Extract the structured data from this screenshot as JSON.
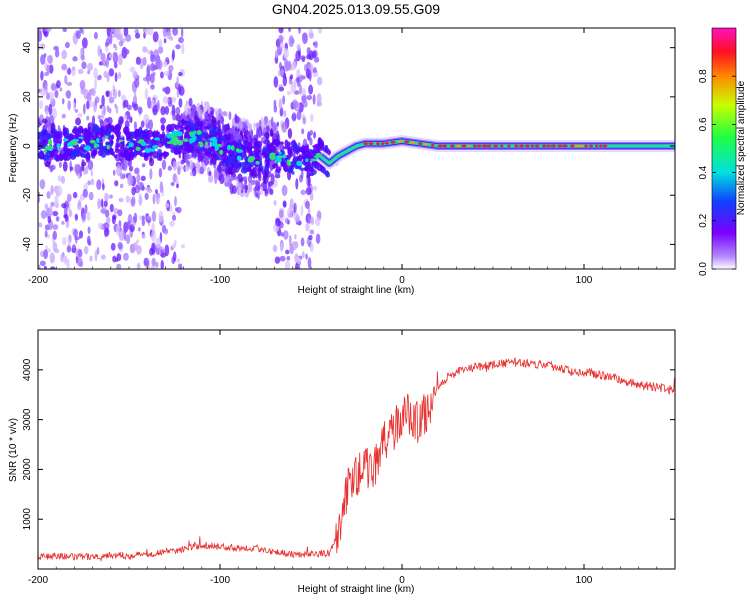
{
  "title": "GN04.2025.013.09.55.G09",
  "colors": {
    "spectrogram_line": "#28d9a6",
    "spectrogram_peak": "#e8213f",
    "scatter": "#6a00ff",
    "snr_line": "#e8302f"
  },
  "chart_data": [
    {
      "type": "heatmap",
      "xlabel": "Height of straight line (km)",
      "ylabel": "Frequency (Hz)",
      "xlim": [
        -200,
        150
      ],
      "ylim": [
        -50,
        48
      ],
      "x_ticks": [
        -200,
        -100,
        0,
        100
      ],
      "y_ticks": [
        -40,
        -20,
        0,
        20,
        40
      ],
      "grid": false,
      "colorbar": {
        "label": "Normalized spectral amplitude",
        "range": [
          0.0,
          1.0
        ],
        "ticks": [
          "0.0",
          "0.2",
          "0.4",
          "0.6",
          "0.8"
        ],
        "colormap": "hsv"
      },
      "dominant_frequency": [
        [
          -200,
          0
        ],
        [
          -180,
          1
        ],
        [
          -160,
          2
        ],
        [
          -140,
          0
        ],
        [
          -120,
          4
        ],
        [
          -110,
          3
        ],
        [
          -100,
          0
        ],
        [
          -90,
          -4
        ],
        [
          -80,
          -5
        ],
        [
          -70,
          -4
        ],
        [
          -60,
          -5
        ],
        [
          -50,
          -6
        ],
        [
          -45,
          -4
        ],
        [
          -40,
          -7
        ],
        [
          -35,
          -4
        ],
        [
          -30,
          -2
        ],
        [
          -25,
          0
        ],
        [
          -20,
          1
        ],
        [
          -10,
          1
        ],
        [
          0,
          2
        ],
        [
          10,
          1
        ],
        [
          20,
          0
        ],
        [
          50,
          0
        ],
        [
          100,
          0
        ],
        [
          150,
          0
        ]
      ]
    },
    {
      "type": "line",
      "xlabel": "Height of straight line (km)",
      "ylabel": "SNR (10 * v/v)",
      "xlim": [
        -200,
        150
      ],
      "ylim": [
        0,
        4800
      ],
      "x_ticks": [
        -200,
        -100,
        0,
        100
      ],
      "y_ticks": [
        1000,
        2000,
        3000,
        4000
      ],
      "grid": false,
      "series": [
        {
          "x": [
            -200,
            -190,
            -180,
            -170,
            -160,
            -150,
            -140,
            -130,
            -120,
            -110,
            -100,
            -90,
            -80,
            -70,
            -60,
            -50,
            -40,
            -35,
            -30,
            -25,
            -20,
            -15,
            -10,
            -5,
            0,
            5,
            10,
            15,
            20,
            25,
            30,
            40,
            50,
            60,
            70,
            80,
            90,
            100,
            110,
            120,
            130,
            140,
            150
          ],
          "values": [
            250,
            260,
            240,
            250,
            280,
            270,
            300,
            350,
            400,
            480,
            450,
            430,
            420,
            350,
            300,
            300,
            320,
            700,
            1600,
            1900,
            2000,
            2100,
            2500,
            2800,
            3050,
            3100,
            2900,
            3300,
            3600,
            3850,
            3950,
            4050,
            4100,
            4150,
            4130,
            4100,
            4000,
            3950,
            3900,
            3800,
            3700,
            3650,
            3580
          ]
        }
      ]
    }
  ]
}
